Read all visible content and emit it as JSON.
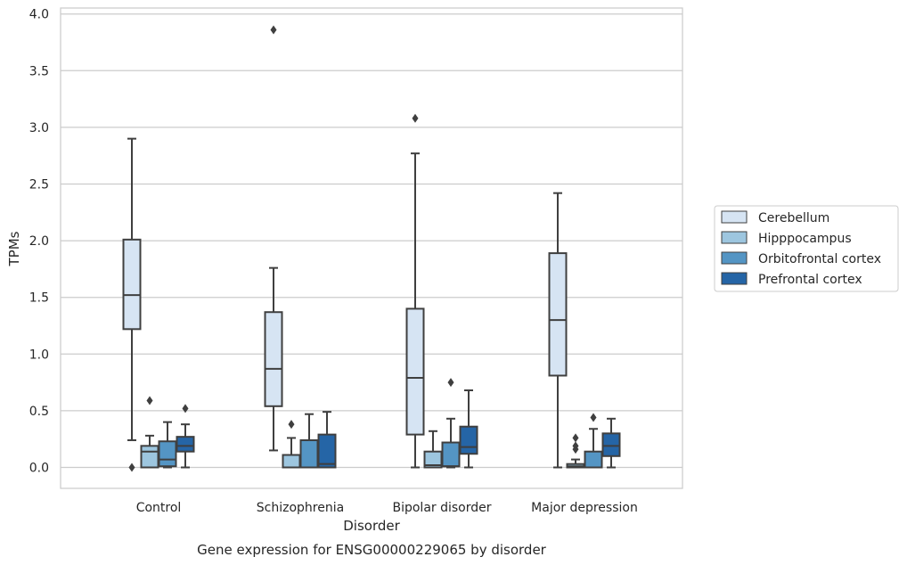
{
  "chart_data": {
    "type": "box",
    "title": "",
    "caption": "Gene expression for ENSG00000229065 by disorder",
    "xlabel": "Disorder",
    "ylabel": "TPMs",
    "ylim": [
      -0.18,
      4.05
    ],
    "yticks": [
      "0.0",
      "0.5",
      "1.0",
      "1.5",
      "2.0",
      "2.5",
      "3.0",
      "3.5",
      "4.0"
    ],
    "grid": true,
    "legend_position": "right",
    "categories": [
      "Control",
      "Schizophrenia",
      "Bipolar disorder",
      "Major depression"
    ],
    "series": [
      {
        "name": "Cerebellum",
        "color": "#d6e4f3",
        "boxes": [
          {
            "whislo": 0.24,
            "q1": 1.22,
            "med": 1.52,
            "q3": 2.01,
            "whishi": 2.9,
            "fliers": [
              0.0
            ]
          },
          {
            "whislo": 0.15,
            "q1": 0.54,
            "med": 0.87,
            "q3": 1.37,
            "whishi": 1.76,
            "fliers": [
              3.86
            ]
          },
          {
            "whislo": 0.0,
            "q1": 0.29,
            "med": 0.79,
            "q3": 1.4,
            "whishi": 2.77,
            "fliers": [
              3.08
            ]
          },
          {
            "whislo": 0.0,
            "q1": 0.81,
            "med": 1.3,
            "q3": 1.89,
            "whishi": 2.42,
            "fliers": []
          }
        ]
      },
      {
        "name": "Hipppocampus",
        "color": "#9dc6df",
        "boxes": [
          {
            "whislo": 0.0,
            "q1": 0.0,
            "med": 0.14,
            "q3": 0.19,
            "whishi": 0.28,
            "fliers": [
              0.59
            ]
          },
          {
            "whislo": 0.0,
            "q1": 0.0,
            "med": 0.0,
            "q3": 0.11,
            "whishi": 0.26,
            "fliers": [
              0.38
            ]
          },
          {
            "whislo": 0.0,
            "q1": 0.0,
            "med": 0.02,
            "q3": 0.14,
            "whishi": 0.32,
            "fliers": []
          },
          {
            "whislo": 0.0,
            "q1": 0.0,
            "med": 0.01,
            "q3": 0.03,
            "whishi": 0.07,
            "fliers": [
              0.16,
              0.19,
              0.26
            ]
          }
        ]
      },
      {
        "name": "Orbitofrontal cortex",
        "color": "#5495c4",
        "boxes": [
          {
            "whislo": 0.0,
            "q1": 0.01,
            "med": 0.07,
            "q3": 0.23,
            "whishi": 0.4,
            "fliers": []
          },
          {
            "whislo": 0.0,
            "q1": 0.0,
            "med": 0.0,
            "q3": 0.24,
            "whishi": 0.47,
            "fliers": []
          },
          {
            "whislo": 0.0,
            "q1": 0.01,
            "med": 0.01,
            "q3": 0.22,
            "whishi": 0.43,
            "fliers": [
              0.75
            ]
          },
          {
            "whislo": 0.0,
            "q1": 0.0,
            "med": 0.0,
            "q3": 0.14,
            "whishi": 0.34,
            "fliers": [
              0.44
            ]
          }
        ]
      },
      {
        "name": "Prefrontal cortex",
        "color": "#2565a6",
        "boxes": [
          {
            "whislo": 0.0,
            "q1": 0.14,
            "med": 0.19,
            "q3": 0.27,
            "whishi": 0.38,
            "fliers": [
              0.52
            ]
          },
          {
            "whislo": 0.0,
            "q1": 0.0,
            "med": 0.03,
            "q3": 0.29,
            "whishi": 0.49,
            "fliers": []
          },
          {
            "whislo": 0.0,
            "q1": 0.12,
            "med": 0.18,
            "q3": 0.36,
            "whishi": 0.68,
            "fliers": []
          },
          {
            "whislo": 0.0,
            "q1": 0.1,
            "med": 0.19,
            "q3": 0.3,
            "whishi": 0.43,
            "fliers": []
          }
        ]
      }
    ]
  }
}
